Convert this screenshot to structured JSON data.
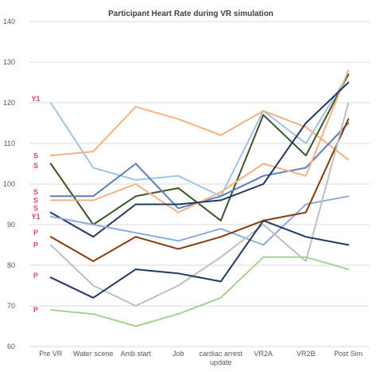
{
  "chart_data": {
    "type": "line",
    "title": "Participant Heart Rate during VR simulation",
    "xlabel": "",
    "ylabel": "",
    "ylim": [
      60,
      140
    ],
    "yticks": [
      60,
      70,
      80,
      90,
      100,
      110,
      120,
      130,
      140
    ],
    "ytick_labels": [
      "60",
      "70",
      "80",
      "90",
      "100",
      "110",
      "120",
      "130",
      "140"
    ],
    "categories": [
      [
        "Pre VR"
      ],
      [
        "Water scene"
      ],
      [
        "Amb start"
      ],
      [
        "Job"
      ],
      [
        "cardiac arrest",
        "update"
      ],
      [
        "VR2A"
      ],
      [
        "VR2B"
      ],
      [
        "Post Sim"
      ]
    ],
    "grid": true,
    "legend": "none",
    "series": [
      {
        "color": "#9dc3e6",
        "values": [
          120,
          104,
          101,
          102,
          97,
          118,
          110,
          127
        ]
      },
      {
        "color": "#f4b183",
        "values": [
          107,
          108,
          119,
          116,
          112,
          118,
          114,
          106
        ]
      },
      {
        "color": "#375623",
        "values": [
          105,
          90,
          97,
          99,
          91,
          117,
          107,
          127
        ]
      },
      {
        "color": "#5b7fb8",
        "values": [
          97,
          97,
          105,
          94,
          97,
          102,
          104,
          115
        ]
      },
      {
        "color": "#f4b183",
        "values": [
          96,
          96,
          100,
          93,
          98,
          105,
          102,
          128
        ]
      },
      {
        "color": "#203864",
        "values": [
          93,
          87,
          95,
          95,
          96,
          100,
          115,
          125
        ]
      },
      {
        "color": "#8ea9db",
        "values": [
          92,
          90,
          88,
          86,
          89,
          85,
          95,
          97
        ]
      },
      {
        "color": "#843c0c",
        "values": [
          87,
          81,
          87,
          84,
          87,
          91,
          93,
          116
        ]
      },
      {
        "color": "#bfbfbf",
        "values": [
          85,
          75,
          70,
          75,
          82,
          90,
          81,
          120
        ]
      },
      {
        "color": "#1f3864",
        "values": [
          77,
          72,
          79,
          78,
          76,
          91,
          87,
          85
        ]
      },
      {
        "color": "#a9d18e",
        "values": [
          69,
          68,
          65,
          68,
          72,
          82,
          82,
          79
        ]
      }
    ],
    "annotations": [
      {
        "text": "Y1",
        "y": 121
      },
      {
        "text": "S",
        "y": 107
      },
      {
        "text": "S",
        "y": 104.5
      },
      {
        "text": "S",
        "y": 98
      },
      {
        "text": "S",
        "y": 96
      },
      {
        "text": "S",
        "y": 94
      },
      {
        "text": "Y1",
        "y": 92
      },
      {
        "text": "P",
        "y": 88
      },
      {
        "text": "P",
        "y": 85
      },
      {
        "text": "P",
        "y": 77.5
      },
      {
        "text": "P",
        "y": 69
      }
    ]
  }
}
